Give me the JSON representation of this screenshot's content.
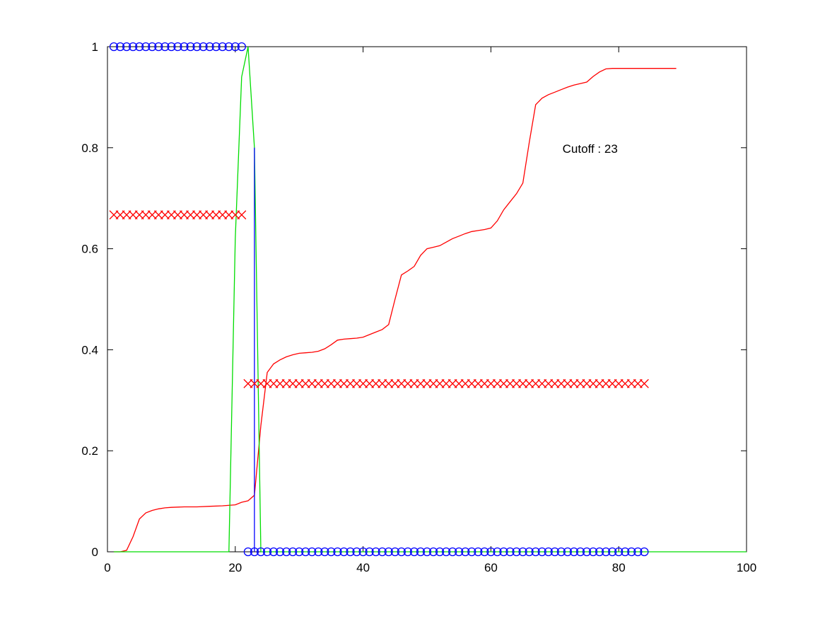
{
  "chart_data": {
    "type": "line",
    "title": "",
    "xlabel": "",
    "ylabel": "",
    "xlim": [
      0,
      100
    ],
    "ylim": [
      0,
      1
    ],
    "x_ticks": [
      0,
      20,
      40,
      60,
      80,
      100
    ],
    "y_ticks": [
      0,
      0.2,
      0.4,
      0.6,
      0.8,
      1
    ],
    "x_tick_labels": [
      "0",
      "20",
      "40",
      "60",
      "80",
      "100"
    ],
    "y_tick_labels": [
      "0",
      "0.2",
      "0.4",
      "0.6",
      "0.8",
      "1"
    ],
    "grid": false,
    "annotation": {
      "text": "Cutoff : 23",
      "x": 71.2,
      "y": 0.79
    },
    "series": [
      {
        "style": "line",
        "color": "#ff0000",
        "x": [
          1,
          2,
          3,
          4,
          5,
          6,
          7,
          8,
          9,
          10,
          12,
          14,
          16,
          18,
          20,
          21,
          22,
          23,
          24,
          25,
          26,
          27,
          28,
          29,
          30,
          31,
          32,
          33,
          34,
          35,
          36,
          37,
          38,
          39,
          40,
          41,
          42,
          43,
          44,
          45,
          46,
          47,
          48,
          49,
          50,
          51,
          52,
          53,
          54,
          55,
          56,
          57,
          58,
          59,
          60,
          61,
          62,
          63,
          64,
          65,
          66,
          67,
          68,
          69,
          70,
          71,
          72,
          73,
          74,
          75,
          76,
          77,
          78,
          79,
          80,
          85,
          89
        ],
        "y": [
          0,
          0,
          0.003,
          0.03,
          0.065,
          0.077,
          0.082,
          0.085,
          0.087,
          0.088,
          0.089,
          0.089,
          0.09,
          0.091,
          0.093,
          0.098,
          0.101,
          0.112,
          0.25,
          0.355,
          0.372,
          0.38,
          0.386,
          0.39,
          0.393,
          0.394,
          0.395,
          0.397,
          0.402,
          0.41,
          0.419,
          0.421,
          0.422,
          0.423,
          0.425,
          0.43,
          0.435,
          0.44,
          0.45,
          0.5,
          0.548,
          0.556,
          0.565,
          0.587,
          0.6,
          0.603,
          0.606,
          0.613,
          0.62,
          0.625,
          0.63,
          0.634,
          0.636,
          0.638,
          0.641,
          0.655,
          0.677,
          0.693,
          0.709,
          0.73,
          0.81,
          0.885,
          0.898,
          0.905,
          0.91,
          0.915,
          0.92,
          0.924,
          0.927,
          0.93,
          0.941,
          0.95,
          0.956,
          0.957,
          0.957,
          0.957,
          0.957
        ]
      },
      {
        "style": "line",
        "color": "#00dd00",
        "x": [
          1,
          19,
          20,
          21,
          22,
          23,
          24,
          100
        ],
        "y": [
          0,
          0,
          0.62,
          0.94,
          1.0,
          0.8,
          0,
          0
        ]
      },
      {
        "style": "line",
        "color": "#0000ff",
        "x": [
          23,
          23
        ],
        "y": [
          0.8,
          0
        ]
      },
      {
        "style": "markers",
        "marker": "x",
        "color": "#ff0000",
        "x": [
          1,
          2,
          3,
          4,
          5,
          6,
          7,
          8,
          9,
          10,
          11,
          12,
          13,
          14,
          15,
          16,
          17,
          18,
          19,
          20,
          21
        ],
        "y": [
          0.667,
          0.667,
          0.667,
          0.667,
          0.667,
          0.667,
          0.667,
          0.667,
          0.667,
          0.667,
          0.667,
          0.667,
          0.667,
          0.667,
          0.667,
          0.667,
          0.667,
          0.667,
          0.667,
          0.667,
          0.667
        ]
      },
      {
        "style": "markers",
        "marker": "x",
        "color": "#ff0000",
        "x": [
          22,
          23,
          24,
          25,
          26,
          27,
          28,
          29,
          30,
          31,
          32,
          33,
          34,
          35,
          36,
          37,
          38,
          39,
          40,
          41,
          42,
          43,
          44,
          45,
          46,
          47,
          48,
          49,
          50,
          51,
          52,
          53,
          54,
          55,
          56,
          57,
          58,
          59,
          60,
          61,
          62,
          63,
          64,
          65,
          66,
          67,
          68,
          69,
          70,
          71,
          72,
          73,
          74,
          75,
          76,
          77,
          78,
          79,
          80,
          81,
          82,
          83,
          84
        ],
        "y": [
          0.333,
          0.333,
          0.333,
          0.333,
          0.333,
          0.333,
          0.333,
          0.333,
          0.333,
          0.333,
          0.333,
          0.333,
          0.333,
          0.333,
          0.333,
          0.333,
          0.333,
          0.333,
          0.333,
          0.333,
          0.333,
          0.333,
          0.333,
          0.333,
          0.333,
          0.333,
          0.333,
          0.333,
          0.333,
          0.333,
          0.333,
          0.333,
          0.333,
          0.333,
          0.333,
          0.333,
          0.333,
          0.333,
          0.333,
          0.333,
          0.333,
          0.333,
          0.333,
          0.333,
          0.333,
          0.333,
          0.333,
          0.333,
          0.333,
          0.333,
          0.333,
          0.333,
          0.333,
          0.333,
          0.333,
          0.333,
          0.333,
          0.333,
          0.333,
          0.333,
          0.333,
          0.333,
          0.333
        ]
      },
      {
        "style": "markers",
        "marker": "o",
        "color": "#0000ff",
        "x": [
          1,
          2,
          3,
          4,
          5,
          6,
          7,
          8,
          9,
          10,
          11,
          12,
          13,
          14,
          15,
          16,
          17,
          18,
          19,
          20,
          21
        ],
        "y": [
          1,
          1,
          1,
          1,
          1,
          1,
          1,
          1,
          1,
          1,
          1,
          1,
          1,
          1,
          1,
          1,
          1,
          1,
          1,
          1,
          1
        ]
      },
      {
        "style": "markers",
        "marker": "o",
        "color": "#0000ff",
        "x": [
          22,
          23,
          24,
          25,
          26,
          27,
          28,
          29,
          30,
          31,
          32,
          33,
          34,
          35,
          36,
          37,
          38,
          39,
          40,
          41,
          42,
          43,
          44,
          45,
          46,
          47,
          48,
          49,
          50,
          51,
          52,
          53,
          54,
          55,
          56,
          57,
          58,
          59,
          60,
          61,
          62,
          63,
          64,
          65,
          66,
          67,
          68,
          69,
          70,
          71,
          72,
          73,
          74,
          75,
          76,
          77,
          78,
          79,
          80,
          81,
          82,
          83,
          84
        ],
        "y": [
          0,
          0,
          0,
          0,
          0,
          0,
          0,
          0,
          0,
          0,
          0,
          0,
          0,
          0,
          0,
          0,
          0,
          0,
          0,
          0,
          0,
          0,
          0,
          0,
          0,
          0,
          0,
          0,
          0,
          0,
          0,
          0,
          0,
          0,
          0,
          0,
          0,
          0,
          0,
          0,
          0,
          0,
          0,
          0,
          0,
          0,
          0,
          0,
          0,
          0,
          0,
          0,
          0,
          0,
          0,
          0,
          0,
          0,
          0,
          0,
          0,
          0,
          0
        ]
      }
    ]
  }
}
